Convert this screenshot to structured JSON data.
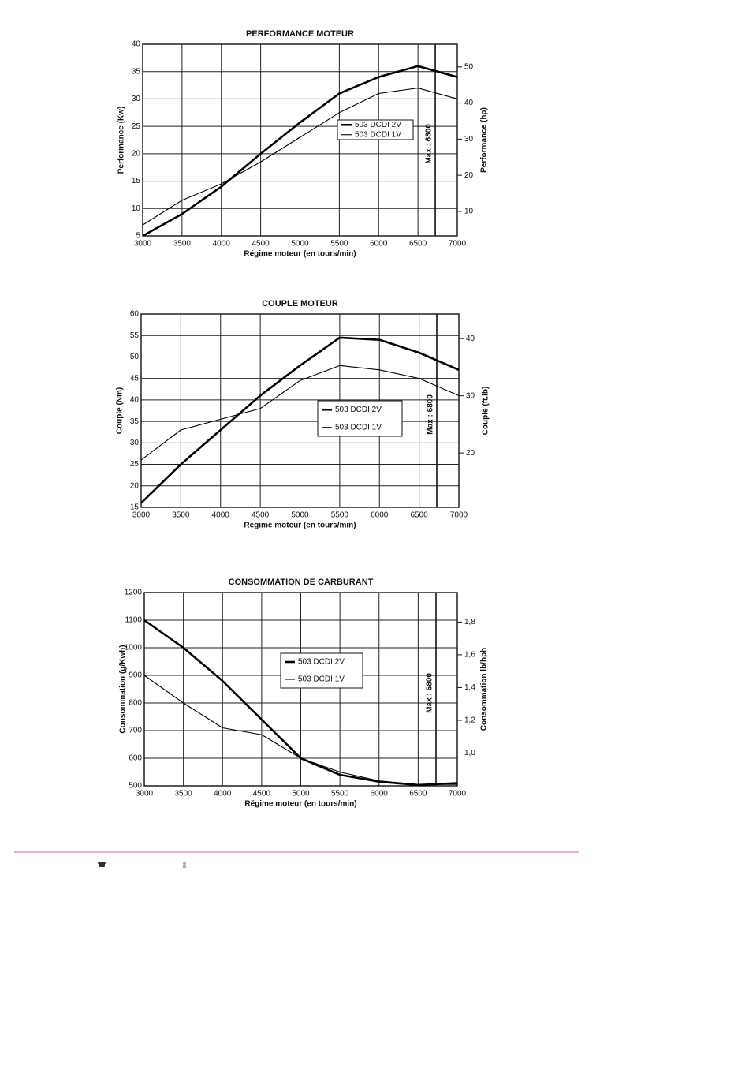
{
  "chart_data": [
    {
      "type": "line",
      "title": "PERFORMANCE MOTEUR",
      "x_label": "Régime moteur (en tours/min)",
      "y_label": "Performance (Kw)",
      "y2_label": "Performance (hp)",
      "x": [
        3000,
        3500,
        4000,
        4500,
        5000,
        5500,
        6000,
        6500,
        7000
      ],
      "xlim": [
        3000,
        7000
      ],
      "xticks": [
        3000,
        3500,
        4000,
        4500,
        5000,
        5500,
        6000,
        6500,
        7000
      ],
      "ylim": [
        5,
        40
      ],
      "yticks": [
        5,
        10,
        15,
        20,
        25,
        30,
        35,
        40
      ],
      "y2lim": [
        3.2,
        56.3
      ],
      "y2ticks": [
        10,
        20,
        30,
        40,
        50
      ],
      "grid": true,
      "series": [
        {
          "name": "503 DCDI 2V",
          "color": "#000000",
          "values": [
            5,
            9,
            14,
            20,
            25.7,
            31,
            34,
            36,
            34
          ]
        },
        {
          "name": "503 DCDI 1V",
          "color": "#000000",
          "values": [
            7,
            11.5,
            14.5,
            18.5,
            23,
            27.5,
            31,
            32,
            30
          ]
        }
      ],
      "annotations": [
        {
          "text": "Max : 6800",
          "x": 6720
        }
      ]
    },
    {
      "type": "line",
      "title": "COUPLE MOTEUR",
      "x_label": "Régime moteur (en tours/min)",
      "y_label": "Couple (Nm)",
      "y2_label": "Couple (ft.lb)",
      "x": [
        3000,
        3500,
        4000,
        4500,
        5000,
        5500,
        6000,
        6500,
        7000
      ],
      "xlim": [
        3000,
        7000
      ],
      "xticks": [
        3000,
        3500,
        4000,
        4500,
        5000,
        5500,
        6000,
        6500,
        7000
      ],
      "ylim": [
        15,
        60
      ],
      "yticks": [
        15,
        20,
        25,
        30,
        35,
        40,
        45,
        50,
        55,
        60
      ],
      "y2lim": [
        10.5,
        44.3
      ],
      "y2ticks": [
        20,
        30,
        40
      ],
      "grid": true,
      "series": [
        {
          "name": "503 DCDI 2V",
          "color": "#000000",
          "values": [
            16,
            25,
            33,
            41,
            48,
            54.5,
            54,
            51,
            47
          ]
        },
        {
          "name": "503 DCDI 1V",
          "color": "#000000",
          "values": [
            26,
            33,
            35.5,
            38,
            44.5,
            48,
            47,
            45,
            41
          ]
        }
      ],
      "annotations": [
        {
          "text": "Max : 6800",
          "x": 6722
        }
      ]
    },
    {
      "type": "line",
      "title": "CONSOMMATION DE CARBURANT",
      "x_label": "Régime moteur (en tours/min)",
      "y_label": "Consommation (g/Kwh)",
      "y2_label": "Consommation lb/hph",
      "x": [
        3000,
        3500,
        4000,
        4500,
        5000,
        5500,
        6000,
        6500,
        7000
      ],
      "xlim": [
        3000,
        7000
      ],
      "xticks": [
        3000,
        3500,
        4000,
        4500,
        5000,
        5500,
        6000,
        6500,
        7000
      ],
      "ylim": [
        500,
        1200
      ],
      "yticks": [
        500,
        600,
        700,
        800,
        900,
        1000,
        1100,
        1200
      ],
      "y2lim": [
        0.8,
        1.98
      ],
      "y2ticks": [
        {
          "value": 1.0,
          "label": "1,0"
        },
        {
          "value": 1.2,
          "label": "1,2"
        },
        {
          "value": 1.4,
          "label": "1,4"
        },
        {
          "value": 1.6,
          "label": "1,6"
        },
        {
          "value": 1.8,
          "label": "1,8"
        }
      ],
      "grid": true,
      "series": [
        {
          "name": "503 DCDI 2V",
          "color": "#000000",
          "values": [
            1100,
            1000,
            880,
            740,
            600,
            540,
            515,
            503,
            510
          ]
        },
        {
          "name": "503 DCDI 1V",
          "color": "#000000",
          "values": [
            900,
            800,
            710,
            685,
            600,
            550,
            518,
            505,
            505
          ]
        }
      ],
      "annotations": [
        {
          "text": "Max : 6800",
          "x": 6728
        }
      ]
    }
  ]
}
